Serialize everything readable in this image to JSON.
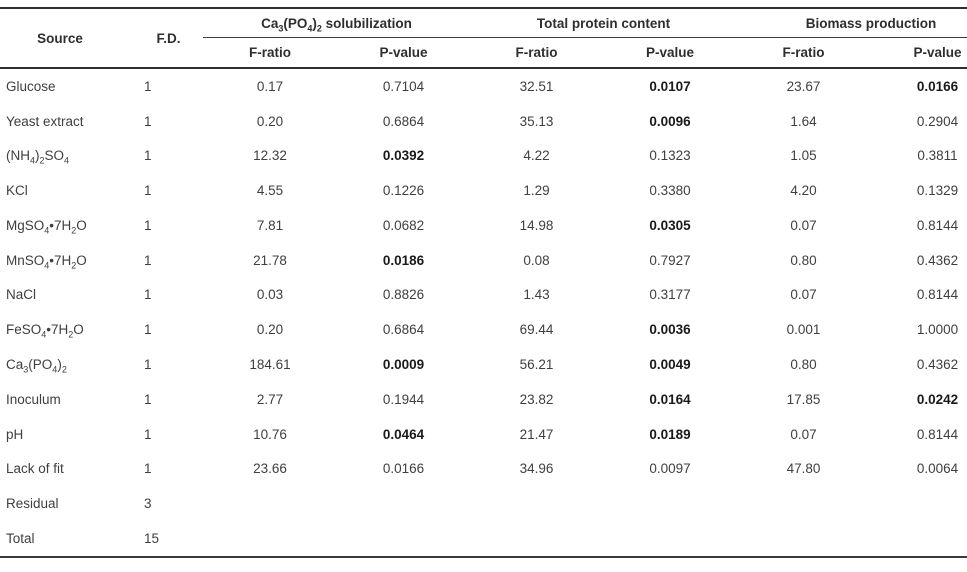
{
  "table": {
    "header": {
      "source": "Source",
      "fd": "F.D.",
      "groups": [
        "Ca<sub>3</sub>(PO<sub>4</sub>)<sub>2</sub> solubilization",
        "Total protein content",
        "Biomass production"
      ],
      "sub": [
        "F-ratio",
        "P-value"
      ]
    },
    "rows": [
      {
        "source": "Glucose",
        "fd": "1",
        "cells": [
          {
            "v": "0.17"
          },
          {
            "v": "0.7104"
          },
          {
            "v": "32.51"
          },
          {
            "v": "0.0107",
            "bold": true
          },
          {
            "v": "23.67"
          },
          {
            "v": "0.0166",
            "bold": true
          }
        ]
      },
      {
        "source": "Yeast extract",
        "fd": "1",
        "cells": [
          {
            "v": "0.20"
          },
          {
            "v": "0.6864"
          },
          {
            "v": "35.13"
          },
          {
            "v": "0.0096",
            "bold": true
          },
          {
            "v": "1.64"
          },
          {
            "v": "0.2904"
          }
        ]
      },
      {
        "source": "(NH<sub>4</sub>)<sub>2</sub>SO<sub>4</sub>",
        "fd": "1",
        "cells": [
          {
            "v": "12.32"
          },
          {
            "v": "0.0392",
            "bold": true
          },
          {
            "v": "4.22"
          },
          {
            "v": "0.1323"
          },
          {
            "v": "1.05"
          },
          {
            "v": "0.3811"
          }
        ]
      },
      {
        "source": "KCl",
        "fd": "1",
        "cells": [
          {
            "v": "4.55"
          },
          {
            "v": "0.1226"
          },
          {
            "v": "1.29"
          },
          {
            "v": "0.3380"
          },
          {
            "v": "4.20"
          },
          {
            "v": "0.1329"
          }
        ]
      },
      {
        "source": "MgSO<sub>4</sub>•7H<sub>2</sub>O",
        "fd": "1",
        "cells": [
          {
            "v": "7.81"
          },
          {
            "v": "0.0682"
          },
          {
            "v": "14.98"
          },
          {
            "v": "0.0305",
            "bold": true
          },
          {
            "v": "0.07"
          },
          {
            "v": "0.8144"
          }
        ]
      },
      {
        "source": "MnSO<sub>4</sub>•7H<sub>2</sub>O",
        "fd": "1",
        "cells": [
          {
            "v": "21.78"
          },
          {
            "v": "0.0186",
            "bold": true
          },
          {
            "v": "0.08"
          },
          {
            "v": "0.7927"
          },
          {
            "v": "0.80"
          },
          {
            "v": "0.4362"
          }
        ]
      },
      {
        "source": "NaCl",
        "fd": "1",
        "cells": [
          {
            "v": "0.03"
          },
          {
            "v": "0.8826"
          },
          {
            "v": "1.43"
          },
          {
            "v": "0.3177"
          },
          {
            "v": "0.07"
          },
          {
            "v": "0.8144"
          }
        ]
      },
      {
        "source": "FeSO<sub>4</sub>•7H<sub>2</sub>O",
        "fd": "1",
        "cells": [
          {
            "v": "0.20"
          },
          {
            "v": "0.6864"
          },
          {
            "v": "69.44"
          },
          {
            "v": "0.0036",
            "bold": true
          },
          {
            "v": "0.001"
          },
          {
            "v": "1.0000"
          }
        ]
      },
      {
        "source": "Ca<sub>3</sub>(PO<sub>4</sub>)<sub>2</sub>",
        "fd": "1",
        "cells": [
          {
            "v": "184.61"
          },
          {
            "v": "0.0009",
            "bold": true
          },
          {
            "v": "56.21"
          },
          {
            "v": "0.0049",
            "bold": true
          },
          {
            "v": "0.80"
          },
          {
            "v": "0.4362"
          }
        ]
      },
      {
        "source": "Inoculum",
        "fd": "1",
        "cells": [
          {
            "v": "2.77"
          },
          {
            "v": "0.1944"
          },
          {
            "v": "23.82"
          },
          {
            "v": "0.0164",
            "bold": true
          },
          {
            "v": "17.85"
          },
          {
            "v": "0.0242",
            "bold": true
          }
        ]
      },
      {
        "source": "pH",
        "fd": "1",
        "cells": [
          {
            "v": "10.76"
          },
          {
            "v": "0.0464",
            "bold": true
          },
          {
            "v": "21.47"
          },
          {
            "v": "0.0189",
            "bold": true
          },
          {
            "v": "0.07"
          },
          {
            "v": "0.8144"
          }
        ]
      },
      {
        "source": "Lack of fit",
        "fd": "1",
        "cells": [
          {
            "v": "23.66"
          },
          {
            "v": "0.0166"
          },
          {
            "v": "34.96"
          },
          {
            "v": "0.0097"
          },
          {
            "v": "47.80"
          },
          {
            "v": "0.0064"
          }
        ]
      },
      {
        "source": "Residual",
        "fd": "3",
        "cells": [
          {
            "v": ""
          },
          {
            "v": ""
          },
          {
            "v": ""
          },
          {
            "v": ""
          },
          {
            "v": ""
          },
          {
            "v": ""
          }
        ]
      },
      {
        "source": "Total",
        "fd": "15",
        "cells": [
          {
            "v": ""
          },
          {
            "v": ""
          },
          {
            "v": ""
          },
          {
            "v": ""
          },
          {
            "v": ""
          },
          {
            "v": ""
          }
        ]
      }
    ]
  }
}
